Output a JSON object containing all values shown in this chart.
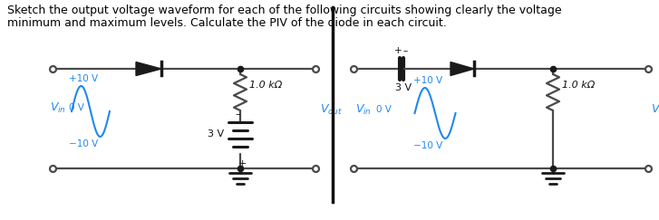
{
  "title_line1": "Sketch the output voltage waveform for each of the following circuits showing clearly the voltage",
  "title_line2": "minimum and maximum levels. Calculate the PIV of the diode in each circuit.",
  "title_fontsize": 9.0,
  "title_color": "#000000",
  "circuit_color": "#4a4a4a",
  "diode_color": "#1a1a1a",
  "sine_color": "#2288ee",
  "label_color": "#2288ee",
  "background": "#ffffff",
  "c1_resistor_label": "1.0 kΩ",
  "c1_battery_label": "3 V",
  "c1_vout_label": "V_{out}",
  "c1_vin_label": "V_{in}",
  "c2_cap_label": "3 V",
  "c2_resistor_label": "1.0 kΩ",
  "c2_vout_label": "V_{out}",
  "c2_vin_label": "V_{in}",
  "lw_wire": 1.6,
  "lw_component": 2.2
}
